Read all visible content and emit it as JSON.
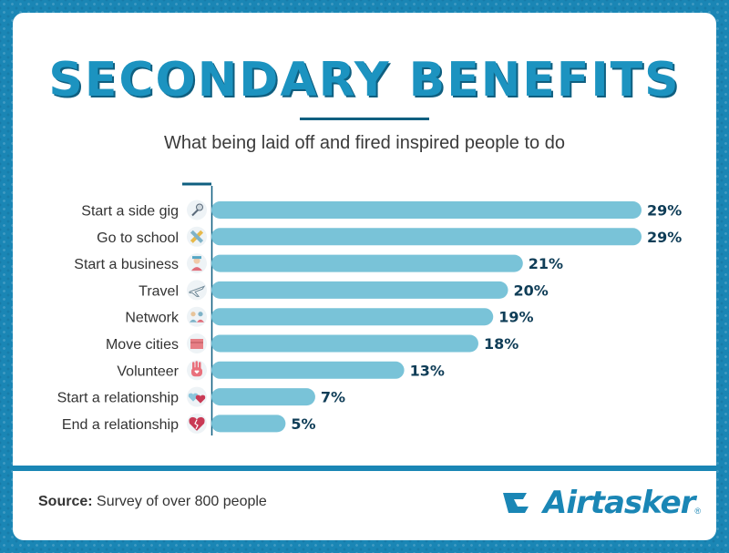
{
  "header": {
    "title": "SECONDARY BENEFITS",
    "subtitle": "What being laid off and fired inspired people to do"
  },
  "colors": {
    "background": "#1a86b5",
    "bar": "#79c3d8",
    "title": "#1c93c0",
    "label": "#0f3d57"
  },
  "chart_data": {
    "type": "bar",
    "orientation": "horizontal",
    "title": "",
    "xlabel": "",
    "ylabel": "",
    "xlim": [
      0,
      29
    ],
    "grid": false,
    "categories": [
      "Start a side gig",
      "Go to school",
      "Start a business",
      "Travel",
      "Network",
      "Move cities",
      "Volunteer",
      "Start a relationship",
      "End a relationship"
    ],
    "values": [
      29,
      29,
      21,
      20,
      19,
      18,
      13,
      7,
      5
    ],
    "value_labels": [
      "29%",
      "29%",
      "21%",
      "20%",
      "19%",
      "18%",
      "13%",
      "7%",
      "5%"
    ],
    "icons": [
      "microphone-icon",
      "pencil-ruler-icon",
      "businessperson-icon",
      "airplane-icon",
      "people-network-icon",
      "moving-box-icon",
      "raised-hand-icon",
      "two-hearts-icon",
      "broken-heart-icon"
    ]
  },
  "footer": {
    "source_label": "Source:",
    "source_text": " Survey of over 800 people",
    "brand": "Airtasker",
    "brand_mark": "®"
  }
}
